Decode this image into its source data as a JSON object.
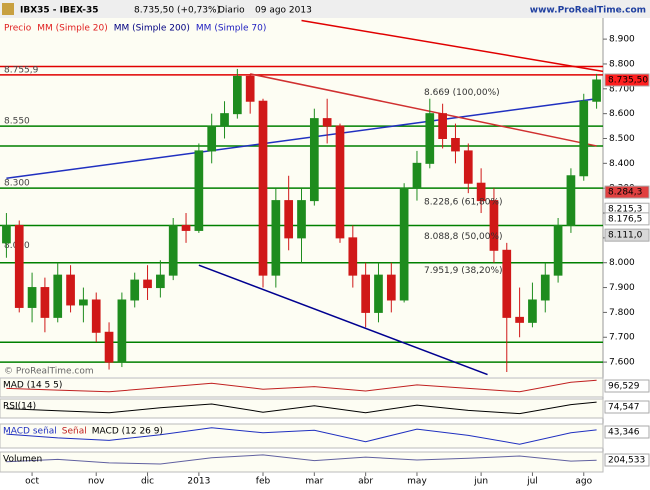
{
  "header": {
    "symbol": "IBX35 - IBEX-35",
    "price": "8.735,50 (+0,73%)",
    "period": "Diario",
    "date": "09 ago 2013",
    "site": "www.ProRealTime.com"
  },
  "legend": [
    {
      "name": "Precio",
      "color": "#e02020"
    },
    {
      "name": "MM (Simple 20)",
      "color": "#e02020"
    },
    {
      "name": "MM (Simple 200)",
      "color": "#000080"
    },
    {
      "name": "MM (Simple 70)",
      "color": "#2020c0"
    }
  ],
  "copyright": "© ProRealTime.com",
  "chart_data": {
    "type": "candlestick",
    "categories": [
      null,
      null,
      "oct",
      null,
      null,
      null,
      null,
      "nov",
      null,
      null,
      null,
      "dic",
      null,
      null,
      null,
      "2013",
      null,
      null,
      null,
      null,
      "feb",
      null,
      null,
      null,
      "mar",
      null,
      null,
      null,
      "abr",
      null,
      null,
      null,
      "may",
      null,
      null,
      null,
      null,
      "jun",
      null,
      null,
      null,
      "jul",
      null,
      null,
      null,
      "ago",
      null
    ],
    "open": [
      8080,
      8150,
      7820,
      7900,
      7780,
      7950,
      7830,
      7850,
      7720,
      7600,
      7850,
      7930,
      7900,
      7950,
      8150,
      8130,
      8450,
      8550,
      8600,
      8750,
      8650,
      7950,
      8250,
      8100,
      8250,
      8580,
      8550,
      8100,
      7950,
      7800,
      7950,
      7850,
      8300,
      8400,
      8600,
      8500,
      8450,
      8320,
      8250,
      8050,
      7780,
      7760,
      7850,
      7950,
      8150,
      8350,
      8650
    ],
    "high": [
      8200,
      8170,
      7960,
      7940,
      8000,
      7990,
      7900,
      7880,
      7760,
      7880,
      7960,
      7990,
      8010,
      8180,
      8200,
      8480,
      8600,
      8650,
      8780,
      8760,
      8660,
      8300,
      8350,
      8300,
      8620,
      8660,
      8560,
      8150,
      8000,
      8000,
      8000,
      8320,
      8450,
      8660,
      8640,
      8560,
      8480,
      8380,
      8300,
      8080,
      7900,
      7920,
      8000,
      8180,
      8380,
      8680,
      8760
    ],
    "low": [
      8020,
      7800,
      7760,
      7720,
      7760,
      7800,
      7760,
      7680,
      7570,
      7580,
      7820,
      7850,
      7860,
      7930,
      8080,
      8120,
      8400,
      8500,
      8580,
      8600,
      7900,
      7900,
      8050,
      8000,
      8230,
      8480,
      8080,
      7900,
      7740,
      7760,
      7800,
      7840,
      8250,
      8380,
      8460,
      8400,
      8280,
      8200,
      8000,
      7560,
      7700,
      7740,
      7800,
      7920,
      8120,
      8330,
      8620
    ],
    "close": [
      8150,
      7820,
      7900,
      7780,
      7950,
      7830,
      7850,
      7720,
      7600,
      7850,
      7930,
      7900,
      7950,
      8150,
      8130,
      8450,
      8550,
      8600,
      8750,
      8650,
      7950,
      8250,
      8100,
      8250,
      8580,
      8550,
      8100,
      7950,
      7800,
      7950,
      7850,
      8300,
      8400,
      8600,
      8500,
      8450,
      8320,
      8250,
      8050,
      7780,
      7760,
      7850,
      7950,
      8150,
      8350,
      8650,
      8735.5
    ],
    "up_color": "#1e8c1e",
    "down_color": "#d01818",
    "ylim": [
      7540,
      8985
    ],
    "yticks": [
      {
        "value": 7600,
        "label": "7.600"
      },
      {
        "value": 7700,
        "label": "7.700"
      },
      {
        "value": 7800,
        "label": "7.800"
      },
      {
        "value": 7900,
        "label": "7.900"
      },
      {
        "value": 8000,
        "label": "8.000"
      },
      {
        "value": 8100,
        "label": "8.100"
      },
      {
        "value": 8200,
        "label": "8.200"
      },
      {
        "value": 8300,
        "label": "8.300"
      },
      {
        "value": 8400,
        "label": "8.400"
      },
      {
        "value": 8500,
        "label": "8.500"
      },
      {
        "value": 8600,
        "label": "8.600"
      },
      {
        "value": 8700,
        "label": "8.700"
      },
      {
        "value": 8800,
        "label": "8.800"
      },
      {
        "value": 8900,
        "label": "8.900"
      }
    ],
    "levels": [
      {
        "value": 8790,
        "color": "#e00000"
      },
      {
        "value": 8755.9,
        "color": "#e00000"
      },
      {
        "value": 8550,
        "color": "#008000"
      },
      {
        "value": 8470,
        "color": "#008000"
      },
      {
        "value": 8300,
        "color": "#008000"
      },
      {
        "value": 8150,
        "color": "#008000"
      },
      {
        "value": 8000,
        "color": "#008000"
      },
      {
        "value": 7680,
        "color": "#008000"
      },
      {
        "value": 7600,
        "color": "#008000"
      }
    ],
    "level_labels": [
      {
        "value": 8755.9,
        "label": "8.755,9"
      },
      {
        "value": 8550,
        "label": "8.550"
      },
      {
        "value": 8300,
        "label": "8.300"
      },
      {
        "value": 8050,
        "label": "8.050"
      }
    ],
    "fib_labels": [
      {
        "value": 8669,
        "label": "8.669 (100,00%)"
      },
      {
        "value": 8228.6,
        "label": "8.228,6 (61,80%)"
      },
      {
        "value": 8088.8,
        "label": "8.088,8 (50,00%)"
      },
      {
        "value": 7951.9,
        "label": "7.951,9 (38,20%)"
      }
    ],
    "price_tags": [
      {
        "value": 8735.5,
        "label": "8.735,50",
        "color": "#ff2020"
      },
      {
        "value": 8284.3,
        "label": "8.284,3",
        "color": "#e04040"
      },
      {
        "value": 8215.3,
        "label": "8.215,3",
        "color": "#ffffff"
      },
      {
        "value": 8176.5,
        "label": "8.176,5",
        "color": "#ffffff"
      },
      {
        "value": 8111,
        "label": "8.111,0",
        "color": "#d8d8d8"
      }
    ],
    "trendlines": [
      {
        "x": [
          0,
          46
        ],
        "y": [
          8340,
          8660
        ],
        "color": "#2030c0"
      },
      {
        "x": [
          15,
          37.5
        ],
        "y": [
          7990,
          7550
        ],
        "color": "#000090"
      },
      {
        "x": [
          23,
          46.5
        ],
        "y": [
          8975,
          8770
        ],
        "color": "#e00000"
      },
      {
        "x": [
          19,
          46
        ],
        "y": [
          8760,
          8470
        ],
        "color": "#d03030"
      }
    ]
  },
  "panels": [
    {
      "label": "MAD (14 5 5)",
      "value_label": "96,529",
      "x": [
        0,
        4,
        8,
        12,
        16,
        20,
        24,
        28,
        32,
        36,
        40,
        44,
        46
      ],
      "values": [
        50,
        40,
        30,
        55,
        80,
        45,
        60,
        35,
        70,
        50,
        30,
        85,
        96.529
      ],
      "ylim": [
        0,
        110
      ],
      "color": "#c02020"
    },
    {
      "label": "RSI(14)",
      "value_label": "74,547",
      "x": [
        0,
        4,
        8,
        12,
        16,
        20,
        24,
        28,
        32,
        36,
        40,
        44,
        46
      ],
      "values": [
        52,
        45,
        38,
        55,
        68,
        40,
        62,
        38,
        64,
        46,
        35,
        66,
        74.547
      ],
      "ylim": [
        20,
        85
      ],
      "color": "#000000"
    },
    {
      "label": "MACD (12 26 9)",
      "value_label": "43,346",
      "x": [
        0,
        4,
        8,
        12,
        16,
        20,
        24,
        28,
        32,
        36,
        40,
        44,
        46
      ],
      "values": [
        10,
        -20,
        -40,
        5,
        60,
        20,
        40,
        -50,
        50,
        0,
        -70,
        20,
        43.346
      ],
      "ylim": [
        -100,
        90
      ],
      "color": "#2030c0"
    },
    {
      "label": "Volumen",
      "value_label": "204,533",
      "x": [
        0,
        4,
        8,
        12,
        16,
        20,
        24,
        28,
        32,
        36,
        40,
        44,
        46
      ],
      "values": [
        180,
        220,
        160,
        140,
        250,
        300,
        200,
        260,
        210,
        240,
        280,
        190,
        204.533
      ],
      "ylim": [
        0,
        350
      ],
      "color": "#6060a0"
    }
  ],
  "panel_extra": [
    "MACD señal",
    "Señal"
  ]
}
